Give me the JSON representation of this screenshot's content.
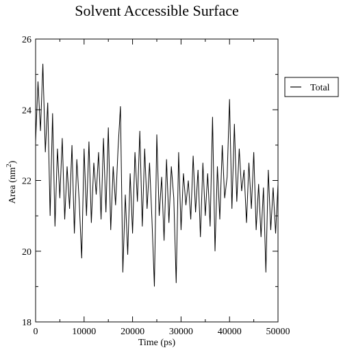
{
  "chart_data": {
    "type": "line",
    "title": "Solvent Accessible Surface",
    "xlabel": "Time (ps)",
    "ylabel": {
      "text": "Area (nm",
      "sup": "2",
      "close": ")"
    },
    "xlim": [
      0,
      50000
    ],
    "ylim": [
      18,
      26
    ],
    "xticks": [
      "0",
      "10000",
      "20000",
      "30000",
      "40000",
      "50000"
    ],
    "yticks": [
      "18",
      "20",
      "22",
      "24",
      "26"
    ],
    "grid": false,
    "legend_placement": "top-right outside plot",
    "series": [
      {
        "name": "Total",
        "color": "#000000",
        "x": [
          0,
          500,
          1000,
          1500,
          2000,
          2500,
          3000,
          3500,
          4000,
          4500,
          5000,
          5500,
          6000,
          6500,
          7000,
          7500,
          8000,
          8500,
          9000,
          9500,
          10000,
          10500,
          11000,
          11500,
          12000,
          12500,
          13000,
          13500,
          14000,
          14500,
          15000,
          15500,
          16000,
          16500,
          17000,
          17500,
          18000,
          18500,
          19000,
          19500,
          20000,
          20500,
          21000,
          21500,
          22000,
          22500,
          23000,
          23500,
          24000,
          24500,
          25000,
          25500,
          26000,
          26500,
          27000,
          27500,
          28000,
          28500,
          29000,
          29500,
          30000,
          30500,
          31000,
          31500,
          32000,
          32500,
          33000,
          33500,
          34000,
          34500,
          35000,
          35500,
          36000,
          36500,
          37000,
          37500,
          38000,
          38500,
          39000,
          39500,
          40000,
          40500,
          41000,
          41500,
          42000,
          42500,
          43000,
          43500,
          44000,
          44500,
          45000,
          45500,
          46000,
          46500,
          47000,
          47500,
          48000,
          48500,
          49000,
          49500,
          50000
        ],
        "y": [
          23.1,
          24.8,
          23.4,
          25.3,
          22.8,
          24.2,
          21.0,
          23.9,
          20.7,
          22.9,
          21.5,
          23.2,
          20.9,
          22.4,
          21.2,
          23.0,
          20.5,
          22.6,
          21.4,
          19.8,
          22.9,
          21.0,
          23.1,
          20.8,
          22.5,
          21.6,
          22.8,
          20.9,
          23.2,
          21.1,
          23.5,
          20.6,
          22.4,
          21.3,
          22.9,
          24.1,
          19.4,
          21.6,
          19.9,
          22.2,
          20.5,
          22.8,
          21.4,
          23.4,
          20.7,
          22.9,
          21.2,
          22.5,
          20.9,
          19.0,
          23.3,
          21.0,
          22.1,
          20.3,
          22.6,
          20.8,
          22.4,
          21.5,
          19.1,
          22.8,
          20.6,
          22.2,
          21.3,
          22.0,
          20.9,
          22.7,
          21.1,
          22.3,
          20.4,
          22.5,
          21.0,
          22.2,
          20.7,
          23.8,
          20.0,
          22.4,
          20.9,
          23.0,
          21.5,
          22.1,
          24.3,
          21.2,
          23.6,
          21.4,
          22.9,
          21.7,
          22.3,
          20.8,
          22.5,
          21.2,
          22.8,
          20.6,
          21.9,
          20.4,
          21.8,
          19.4,
          22.3,
          20.6,
          21.8,
          20.5,
          21.9
        ]
      }
    ]
  }
}
